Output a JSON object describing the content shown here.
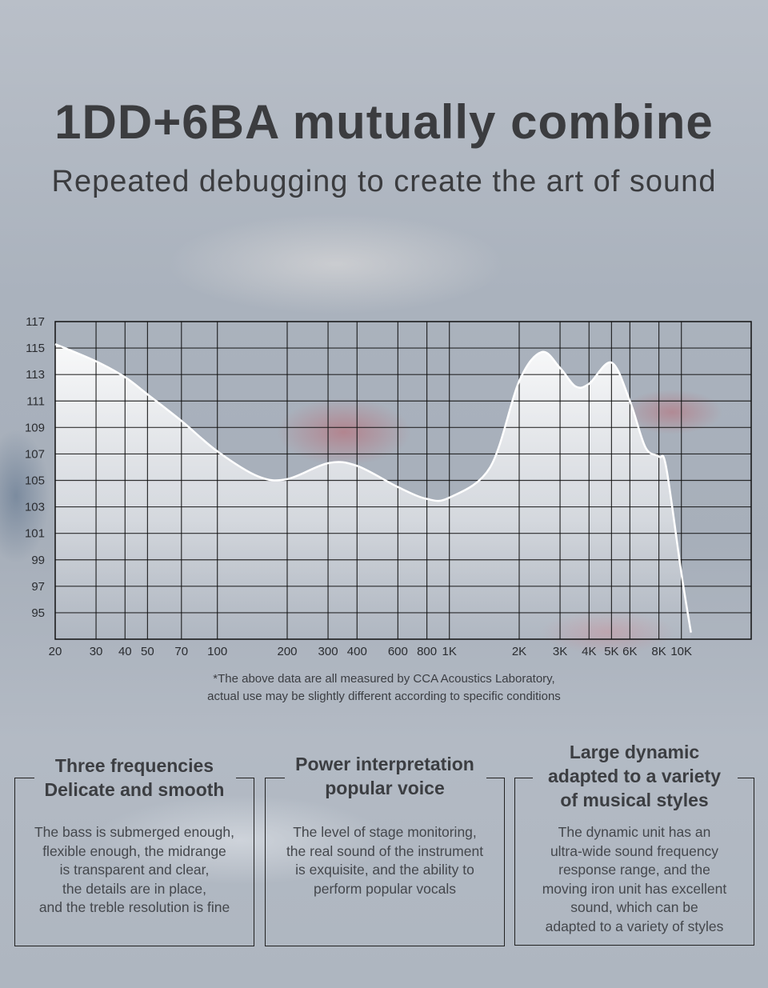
{
  "header": {
    "title": "1DD+6BA mutually combine",
    "subtitle": "Repeated debugging to create the art of sound"
  },
  "chart_data": {
    "type": "area",
    "x_scale": "log",
    "xlim": [
      20,
      20000
    ],
    "ylim": [
      93,
      117
    ],
    "grid": true,
    "x_ticks": [
      {
        "value": 20,
        "label": "20"
      },
      {
        "value": 30,
        "label": "30"
      },
      {
        "value": 40,
        "label": "40"
      },
      {
        "value": 50,
        "label": "50"
      },
      {
        "value": 70,
        "label": "70"
      },
      {
        "value": 100,
        "label": "100"
      },
      {
        "value": 200,
        "label": "200"
      },
      {
        "value": 300,
        "label": "300"
      },
      {
        "value": 400,
        "label": "400"
      },
      {
        "value": 600,
        "label": "600"
      },
      {
        "value": 800,
        "label": "800"
      },
      {
        "value": 1000,
        "label": "1K"
      },
      {
        "value": 2000,
        "label": "2K"
      },
      {
        "value": 3000,
        "label": "3K"
      },
      {
        "value": 4000,
        "label": "4K"
      },
      {
        "value": 5000,
        "label": "5K"
      },
      {
        "value": 6000,
        "label": "6K"
      },
      {
        "value": 8000,
        "label": "8K"
      },
      {
        "value": 10000,
        "label": "10K"
      }
    ],
    "y_ticks": [
      "117",
      "115",
      "113",
      "111",
      "109",
      "107",
      "105",
      "103",
      "101",
      "99",
      "97",
      "95"
    ],
    "x": [
      20,
      30,
      40,
      50,
      70,
      100,
      150,
      200,
      300,
      400,
      600,
      800,
      1000,
      1500,
      2000,
      2500,
      3000,
      3500,
      4000,
      5000,
      6000,
      7000,
      8000,
      8600,
      10000,
      11000
    ],
    "y": [
      115.3,
      114.0,
      112.8,
      111.5,
      109.5,
      107.2,
      105.3,
      105.1,
      106.3,
      106.1,
      104.5,
      103.6,
      103.7,
      106.0,
      112.5,
      114.7,
      113.5,
      112.1,
      112.3,
      113.9,
      111.0,
      107.5,
      106.8,
      106.0,
      98.0,
      93.5
    ]
  },
  "note": {
    "line1": "*The above data are all measured by CCA Acoustics Laboratory,",
    "line2": "actual use may be slightly different according to specific conditions"
  },
  "features": [
    {
      "title": [
        "Three frequencies",
        "Delicate and smooth"
      ],
      "body": [
        "The bass is submerged enough,",
        "flexible enough, the midrange",
        "is transparent and clear,",
        "the details are in place,",
        "and the treble resolution is fine"
      ]
    },
    {
      "title": [
        "Power interpretation",
        "popular voice"
      ],
      "body": [
        "The level of stage monitoring,",
        "the real sound of the instrument",
        "is exquisite, and the ability to",
        "perform popular vocals"
      ]
    },
    {
      "title": [
        "Large dynamic",
        "adapted to a variety",
        "of musical styles"
      ],
      "body": [
        "The dynamic unit has an",
        "ultra-wide sound frequency",
        "response range, and the",
        "moving iron unit has excellent",
        "sound, which can be",
        "adapted to a variety of styles"
      ]
    }
  ]
}
